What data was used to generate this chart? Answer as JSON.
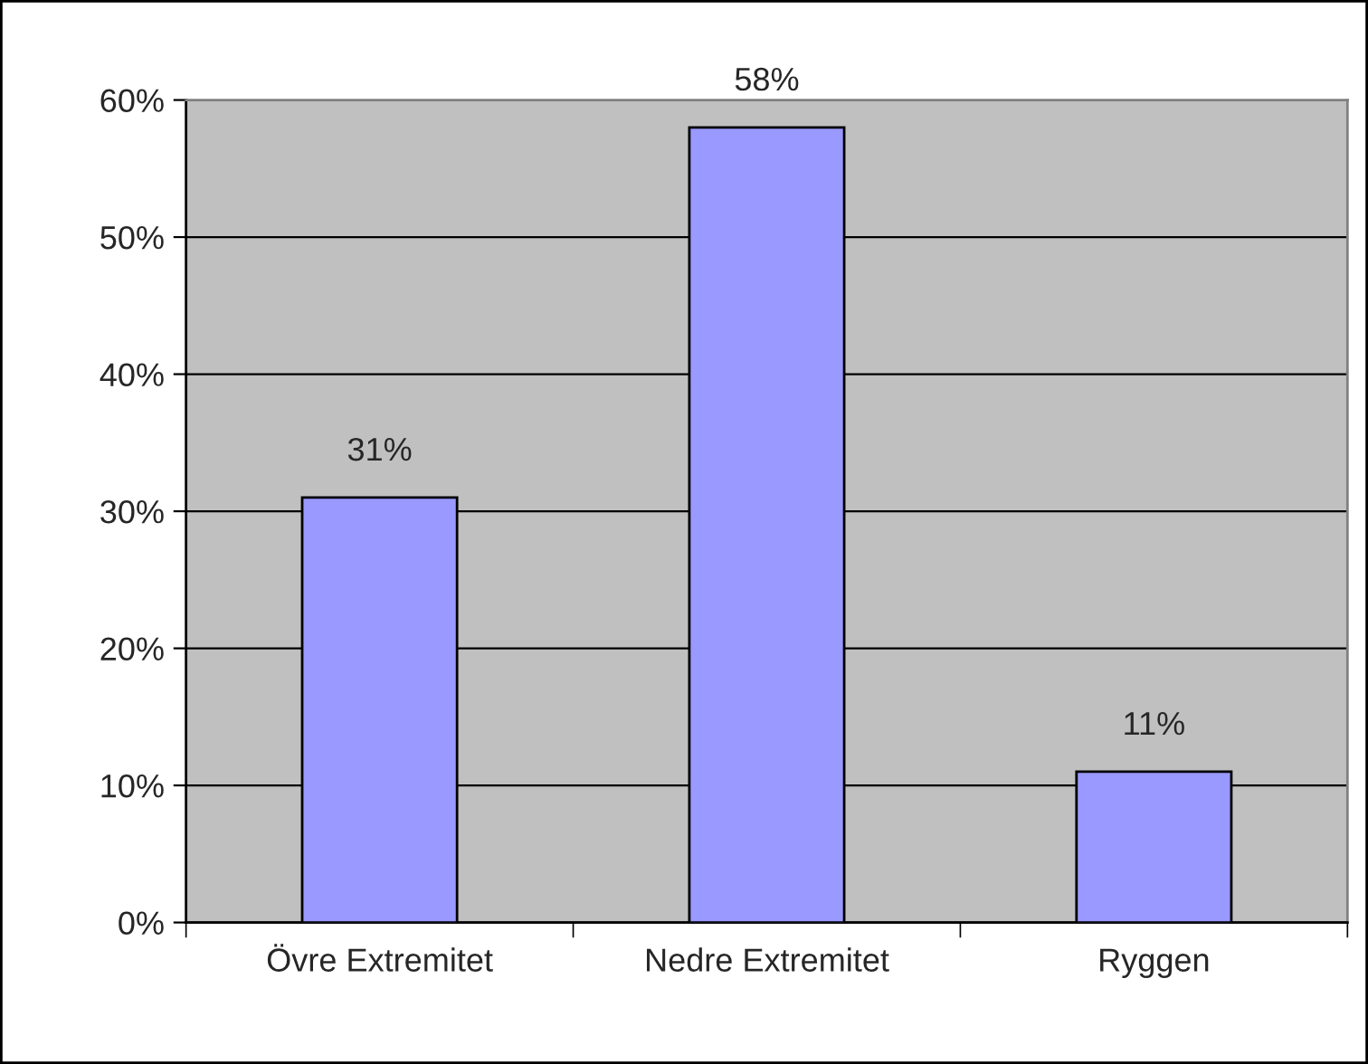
{
  "chart_data": {
    "type": "bar",
    "categories": [
      "Övre Extremitet",
      "Nedre Extremitet",
      "Ryggen"
    ],
    "values": [
      31,
      58,
      11
    ],
    "value_labels": [
      "31%",
      "58%",
      "11%"
    ],
    "color": "#9999ff",
    "ylim": [
      0,
      60
    ],
    "yticks": [
      {
        "value": 0,
        "label": "0%"
      },
      {
        "value": 10,
        "label": "10%"
      },
      {
        "value": 20,
        "label": "20%"
      },
      {
        "value": 30,
        "label": "30%"
      },
      {
        "value": 40,
        "label": "40%"
      },
      {
        "value": 50,
        "label": "50%"
      },
      {
        "value": 60,
        "label": "60%"
      }
    ],
    "grid": "y"
  }
}
